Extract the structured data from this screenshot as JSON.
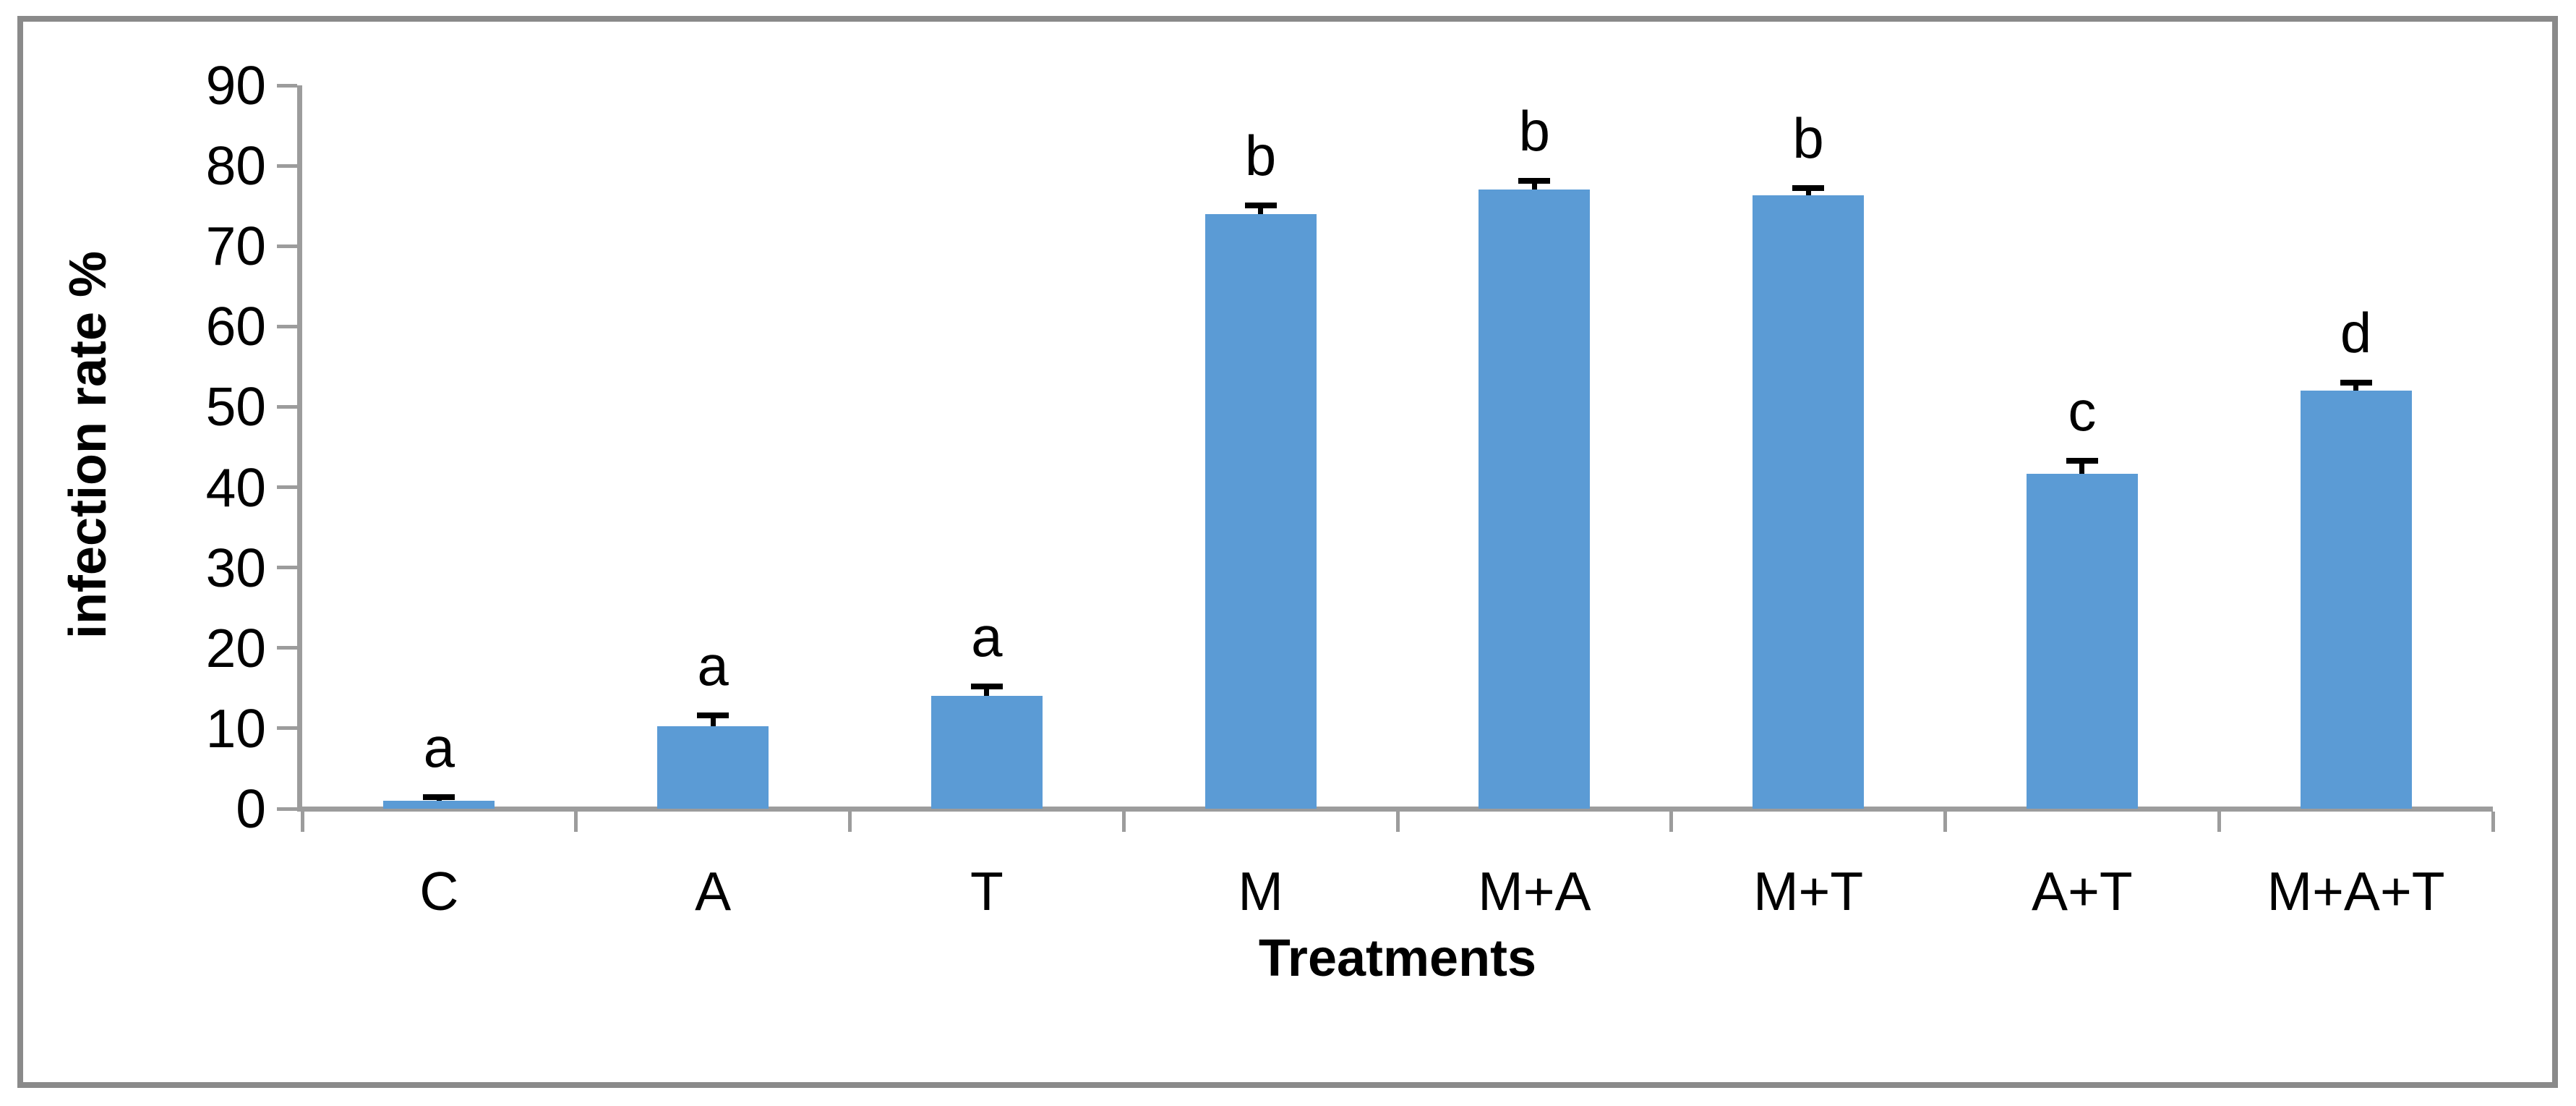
{
  "chart_data": {
    "type": "bar",
    "title": "",
    "xlabel": "Treatments",
    "ylabel": "infection rate %",
    "categories": [
      "C",
      "A",
      "T",
      "M",
      "M+A",
      "M+T",
      "A+T",
      "M+A+T"
    ],
    "values": [
      1.0,
      10.3,
      14.0,
      74.0,
      77.0,
      76.3,
      41.7,
      52.0
    ],
    "errors_plus": [
      0.4,
      1.3,
      1.2,
      1.1,
      1.1,
      0.9,
      1.6,
      1.0
    ],
    "sig_letters": [
      "a",
      "a",
      "a",
      "b",
      "b",
      "b",
      "c",
      "d"
    ],
    "ylim": [
      0,
      90
    ],
    "ytick_step": 10,
    "yticks": [
      0,
      10,
      20,
      30,
      40,
      50,
      60,
      70,
      80,
      90
    ],
    "grid": false,
    "legend": "none",
    "bar_color": "#5B9BD5",
    "axis_color": "#9C9C9C",
    "error_color": "#000000",
    "frame_color": "#8A8A8A",
    "text_color": "#000000"
  }
}
